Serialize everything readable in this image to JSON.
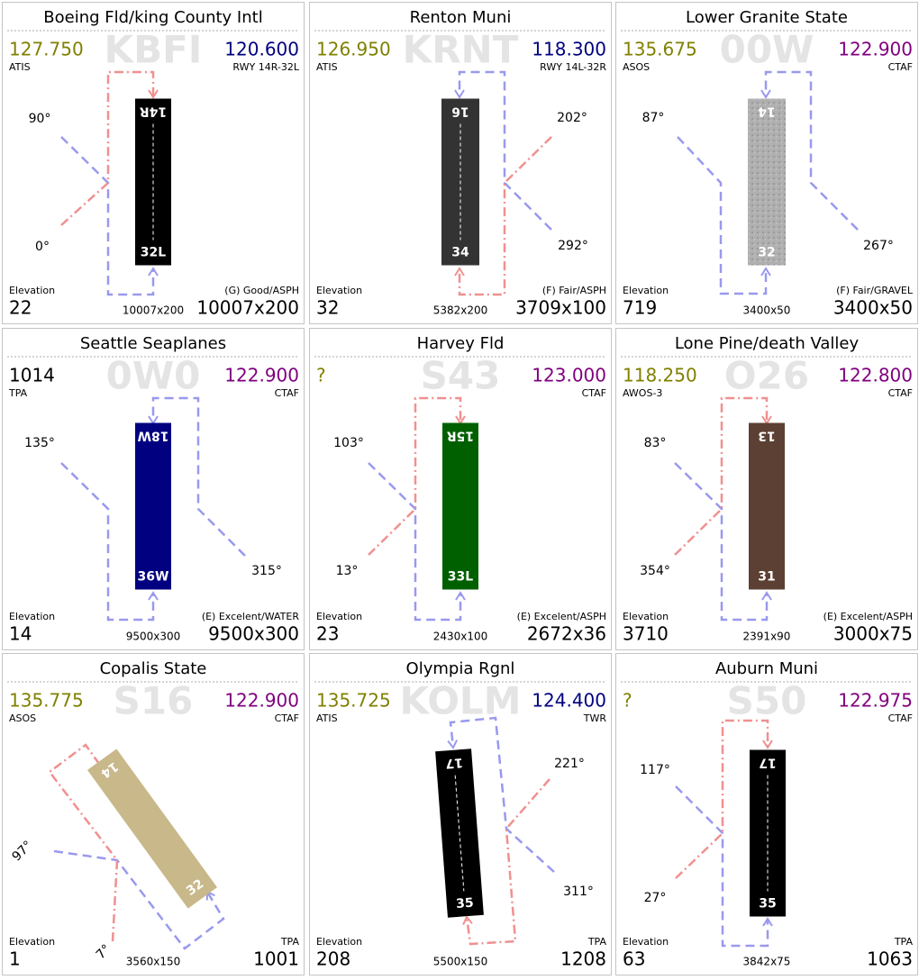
{
  "cards": [
    {
      "title": "Boeing Fld/king County Intl",
      "ident": "KBFI",
      "left_freq": "127.750",
      "left_label": "ATIS",
      "left_color": "#808000",
      "right_freq": "120.600",
      "right_label": "RWY 14R-32L",
      "right_color": "#000080",
      "runway_top": "14R",
      "runway_bottom": "32L",
      "angles": [
        "90°",
        "0°"
      ],
      "elevation_label": "Elevation",
      "elevation": "22",
      "small_dims": "10007x200",
      "right_small": "(G) Good/ASPH",
      "right_big": "10007x200"
    },
    {
      "title": "Renton Muni",
      "ident": "KRNT",
      "left_freq": "126.950",
      "left_label": "ATIS",
      "left_color": "#808000",
      "right_freq": "118.300",
      "right_label": "RWY 14L-32R",
      "right_color": "#000080",
      "runway_top": "16",
      "runway_bottom": "34",
      "angles": [
        "202°",
        "292°"
      ],
      "elevation_label": "Elevation",
      "elevation": "32",
      "small_dims": "5382x200",
      "right_small": "(F) Fair/ASPH",
      "right_big": "3709x100"
    },
    {
      "title": "Lower Granite State",
      "ident": "00W",
      "left_freq": "135.675",
      "left_label": "ASOS",
      "left_color": "#808000",
      "right_freq": "122.900",
      "right_label": "CTAF",
      "right_color": "#800080",
      "runway_top": "14",
      "runway_bottom": "32",
      "angles": [
        "87°",
        "267°"
      ],
      "elevation_label": "Elevation",
      "elevation": "719",
      "small_dims": "3400x50",
      "right_small": "(F) Fair/GRAVEL",
      "right_big": "3400x50"
    },
    {
      "title": "Seattle Seaplanes",
      "ident": "0W0",
      "left_freq": "1014",
      "left_label": "TPA",
      "left_color": "#000000",
      "right_freq": "122.900",
      "right_label": "CTAF",
      "right_color": "#800080",
      "runway_top": "18W",
      "runway_bottom": "36W",
      "angles": [
        "135°",
        "315°"
      ],
      "elevation_label": "Elevation",
      "elevation": "14",
      "small_dims": "9500x300",
      "right_small": "(E) Excelent/WATER",
      "right_big": "9500x300"
    },
    {
      "title": "Harvey Fld",
      "ident": "S43",
      "left_freq": "?",
      "left_color": "#808000",
      "right_freq": "123.000",
      "right_label": "CTAF",
      "right_color": "#800080",
      "runway_top": "15R",
      "runway_bottom": "33L",
      "angles": [
        "103°",
        "13°"
      ],
      "elevation_label": "Elevation",
      "elevation": "23",
      "small_dims": "2430x100",
      "right_small": "(E) Excelent/ASPH",
      "right_big": "2672x36"
    },
    {
      "title": "Lone Pine/death Valley",
      "ident": "O26",
      "left_freq": "118.250",
      "left_label": "AWOS-3",
      "left_color": "#808000",
      "right_freq": "122.800",
      "right_label": "CTAF",
      "right_color": "#800080",
      "runway_top": "13",
      "runway_bottom": "31",
      "angles": [
        "83°",
        "354°"
      ],
      "elevation_label": "Elevation",
      "elevation": "3710",
      "small_dims": "2391x90",
      "right_small": "(E) Excelent/ASPH",
      "right_big": "3000x75"
    },
    {
      "title": "Copalis State",
      "ident": "S16",
      "left_freq": "135.775",
      "left_label": "ASOS",
      "left_color": "#808000",
      "right_freq": "122.900",
      "right_label": "CTAF",
      "right_color": "#800080",
      "runway_top": "14",
      "runway_bottom": "32",
      "angles": [
        "97°",
        "7°"
      ],
      "elevation_label": "Elevation",
      "elevation": "1",
      "small_dims": "3560x150",
      "right_small": "TPA",
      "right_big": "1001"
    },
    {
      "title": "Olympia Rgnl",
      "ident": "KOLM",
      "left_freq": "135.725",
      "left_label": "ATIS",
      "left_color": "#808000",
      "right_freq": "124.400",
      "right_label": "TWR",
      "right_color": "#000080",
      "runway_top": "17",
      "runway_bottom": "35",
      "angles": [
        "221°",
        "311°"
      ],
      "elevation_label": "Elevation",
      "elevation": "208",
      "small_dims": "5500x150",
      "right_small": "TPA",
      "right_big": "1208"
    },
    {
      "title": "Auburn Muni",
      "ident": "S50",
      "left_freq": "?",
      "left_color": "#808000",
      "right_freq": "122.975",
      "right_label": "CTAF",
      "right_color": "#800080",
      "runway_top": "17",
      "runway_bottom": "35",
      "angles": [
        "117°",
        "27°"
      ],
      "elevation_label": "Elevation",
      "elevation": "63",
      "small_dims": "3842x75",
      "right_small": "TPA",
      "right_big": "1063"
    }
  ]
}
